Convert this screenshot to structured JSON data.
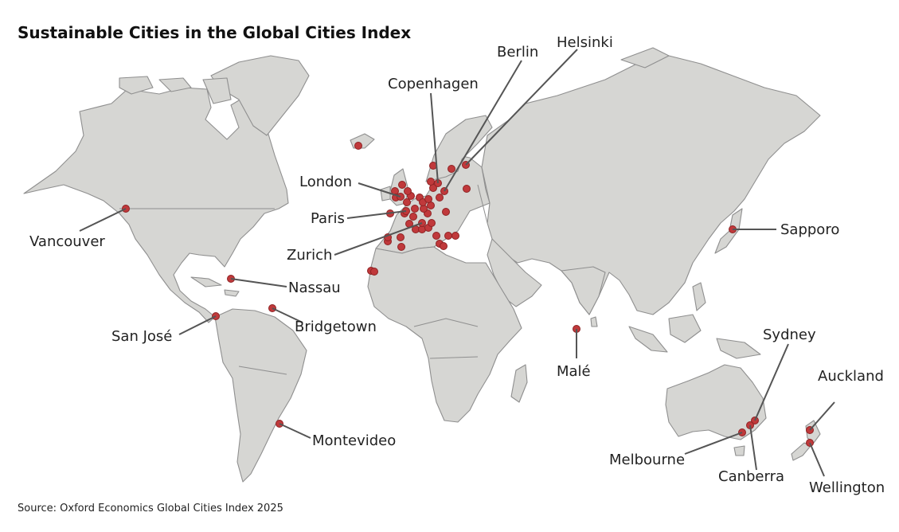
{
  "title": "Sustainable Cities in the Global Cities Index",
  "source": "Source: Oxford Economics Global Cities Index 2025",
  "colors": {
    "land": "#d6d6d3",
    "border": "#8f8f8f",
    "marker": "#c0393b",
    "leader": "#555555"
  },
  "labeled_cities": [
    {
      "id": "vancouver",
      "name": "Vancouver"
    },
    {
      "id": "nassau",
      "name": "Nassau"
    },
    {
      "id": "san-jose",
      "name": "San José"
    },
    {
      "id": "bridgetown",
      "name": "Bridgetown"
    },
    {
      "id": "montevideo",
      "name": "Montevideo"
    },
    {
      "id": "london",
      "name": "London"
    },
    {
      "id": "paris",
      "name": "Paris"
    },
    {
      "id": "zurich",
      "name": "Zurich"
    },
    {
      "id": "copenhagen",
      "name": "Copenhagen"
    },
    {
      "id": "berlin",
      "name": "Berlin"
    },
    {
      "id": "helsinki",
      "name": "Helsinki"
    },
    {
      "id": "male",
      "name": "Malé"
    },
    {
      "id": "sapporo",
      "name": "Sapporo"
    },
    {
      "id": "sydney",
      "name": "Sydney"
    },
    {
      "id": "melbourne",
      "name": "Melbourne"
    },
    {
      "id": "canberra",
      "name": "Canberra"
    },
    {
      "id": "auckland",
      "name": "Auckland"
    },
    {
      "id": "wellington",
      "name": "Wellington"
    }
  ]
}
